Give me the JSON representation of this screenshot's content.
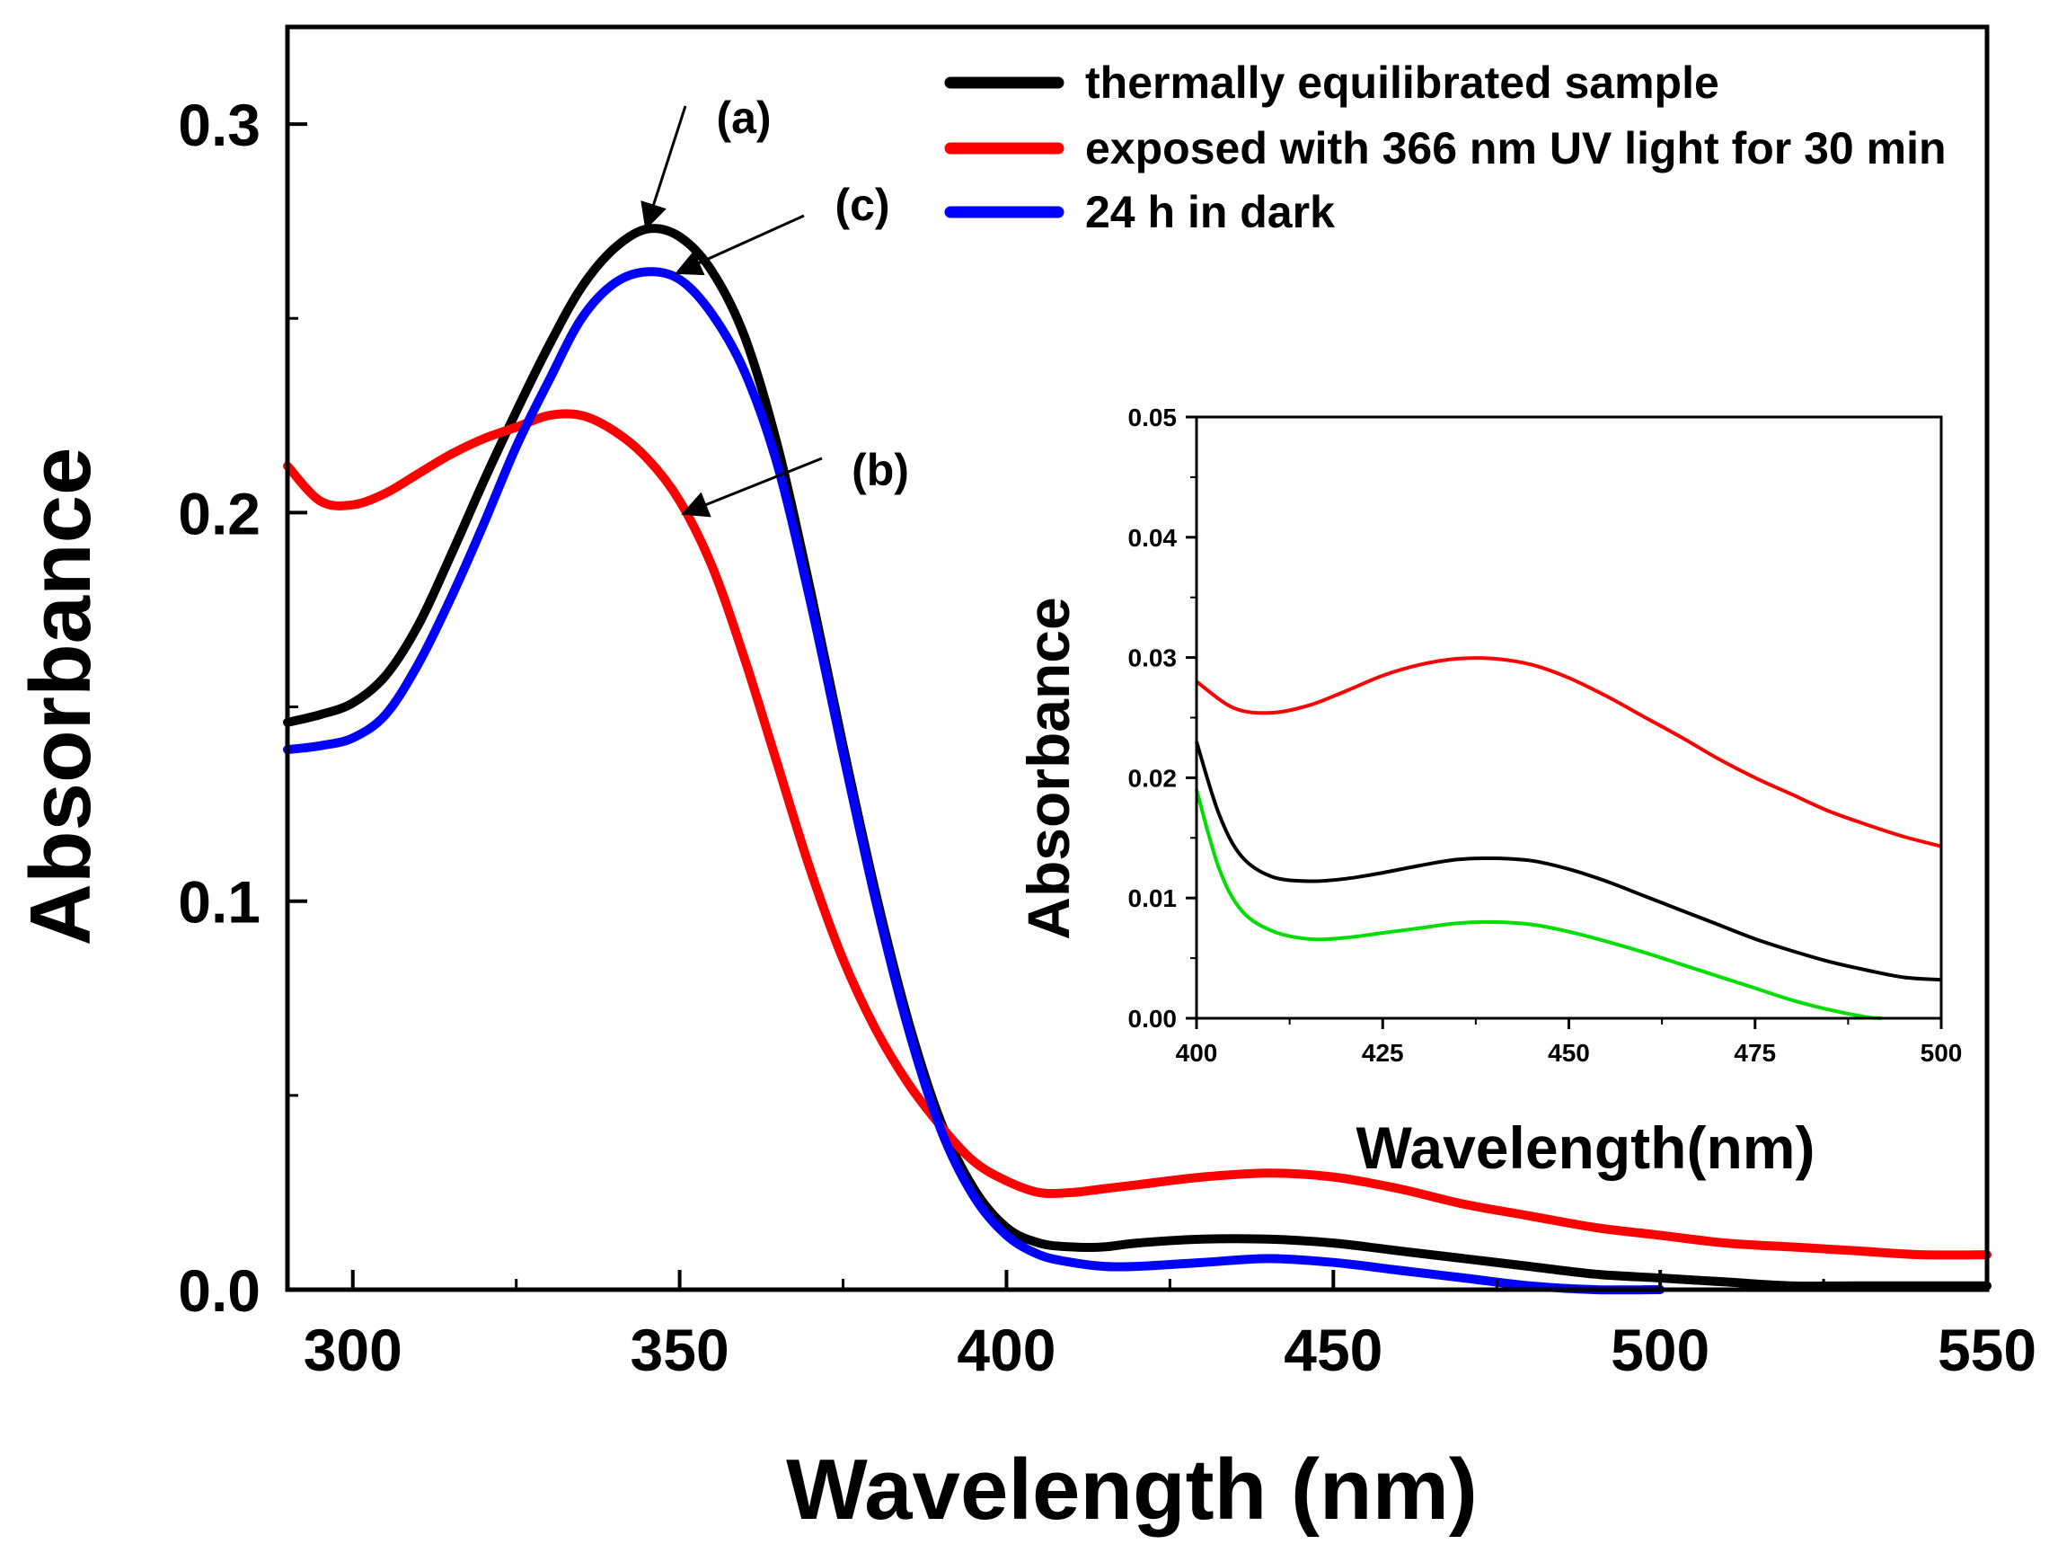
{
  "chart_data": [
    {
      "id": "main",
      "type": "line",
      "xlabel": "Wavelength (nm)",
      "ylabel": "Absorbance",
      "xlim": [
        290,
        550
      ],
      "ylim": [
        0,
        0.325
      ],
      "xticks": [
        300,
        350,
        400,
        450,
        500,
        550
      ],
      "xtick_labels": [
        "300",
        "350",
        "400",
        "450",
        "500",
        "550"
      ],
      "yticks": [
        0.0,
        0.1,
        0.2,
        0.3
      ],
      "ytick_labels": [
        "0.0",
        "0.1",
        "0.2",
        "0.3"
      ],
      "legend_position": "top-right",
      "series": [
        {
          "name": "thermally equilibrated sample",
          "color": "#000000",
          "x": [
            290,
            295,
            300,
            305,
            310,
            315,
            320,
            325,
            330,
            335,
            340,
            345,
            350,
            355,
            360,
            365,
            370,
            375,
            380,
            385,
            390,
            395,
            400,
            405,
            410,
            415,
            420,
            430,
            440,
            450,
            460,
            470,
            480,
            490,
            500,
            510,
            520,
            530,
            540,
            550
          ],
          "y": [
            0.146,
            0.148,
            0.151,
            0.158,
            0.171,
            0.189,
            0.208,
            0.226,
            0.243,
            0.258,
            0.268,
            0.273,
            0.271,
            0.262,
            0.245,
            0.217,
            0.18,
            0.14,
            0.102,
            0.069,
            0.043,
            0.026,
            0.016,
            0.012,
            0.011,
            0.011,
            0.012,
            0.013,
            0.013,
            0.012,
            0.01,
            0.008,
            0.006,
            0.004,
            0.003,
            0.002,
            0.001,
            0.001,
            0.001,
            0.001
          ]
        },
        {
          "name": "exposed with 366 nm UV light for 30 min",
          "color": "#ff0000",
          "x": [
            290,
            295,
            300,
            305,
            310,
            315,
            320,
            325,
            330,
            335,
            340,
            345,
            350,
            355,
            360,
            365,
            370,
            375,
            380,
            385,
            390,
            395,
            400,
            405,
            410,
            415,
            420,
            430,
            440,
            450,
            460,
            470,
            480,
            490,
            500,
            510,
            520,
            530,
            540,
            550
          ],
          "y": [
            0.212,
            0.203,
            0.202,
            0.205,
            0.21,
            0.215,
            0.219,
            0.222,
            0.225,
            0.225,
            0.221,
            0.214,
            0.203,
            0.186,
            0.162,
            0.135,
            0.108,
            0.085,
            0.067,
            0.053,
            0.042,
            0.033,
            0.028,
            0.025,
            0.025,
            0.026,
            0.027,
            0.029,
            0.03,
            0.029,
            0.026,
            0.022,
            0.019,
            0.016,
            0.014,
            0.012,
            0.011,
            0.01,
            0.009,
            0.009
          ]
        },
        {
          "name": "24 h in dark",
          "color": "#0000ff",
          "x": [
            290,
            295,
            300,
            305,
            310,
            315,
            320,
            325,
            330,
            335,
            340,
            345,
            350,
            355,
            360,
            365,
            370,
            375,
            380,
            385,
            390,
            395,
            400,
            405,
            410,
            415,
            420,
            430,
            440,
            450,
            460,
            470,
            480,
            490,
            500
          ],
          "y": [
            0.139,
            0.14,
            0.142,
            0.148,
            0.161,
            0.178,
            0.197,
            0.217,
            0.234,
            0.25,
            0.259,
            0.262,
            0.26,
            0.251,
            0.236,
            0.212,
            0.177,
            0.138,
            0.1,
            0.067,
            0.041,
            0.024,
            0.014,
            0.009,
            0.007,
            0.006,
            0.006,
            0.007,
            0.008,
            0.007,
            0.005,
            0.003,
            0.001,
            0.0,
            0.0
          ]
        }
      ],
      "annotations": [
        {
          "label": "(a)",
          "target_x": 345,
          "target_y": 0.274
        },
        {
          "label": "(c)",
          "target_x": 350,
          "target_y": 0.262
        },
        {
          "label": "(b)",
          "target_x": 351,
          "target_y": 0.2
        }
      ]
    },
    {
      "id": "inset",
      "type": "line",
      "xlabel": "Wavelength(nm)",
      "ylabel": "Absorbance",
      "xlim": [
        400,
        500
      ],
      "ylim": [
        0,
        0.05
      ],
      "xticks": [
        400,
        425,
        450,
        475,
        500
      ],
      "xtick_labels": [
        "400",
        "425",
        "450",
        "475",
        "500"
      ],
      "yticks": [
        0.0,
        0.01,
        0.02,
        0.03,
        0.04,
        0.05
      ],
      "ytick_labels": [
        "0.00",
        "0.01",
        "0.02",
        "0.03",
        "0.04",
        "0.05"
      ],
      "series": [
        {
          "color": "#ff0000",
          "x": [
            400,
            405,
            410,
            415,
            420,
            425,
            430,
            435,
            440,
            445,
            450,
            455,
            460,
            465,
            470,
            475,
            480,
            485,
            490,
            495,
            500
          ],
          "y": [
            0.028,
            0.0258,
            0.0254,
            0.026,
            0.0272,
            0.0285,
            0.0294,
            0.0299,
            0.0299,
            0.0294,
            0.0283,
            0.0268,
            0.0251,
            0.0234,
            0.0216,
            0.02,
            0.0186,
            0.0172,
            0.0161,
            0.0151,
            0.0143
          ]
        },
        {
          "color": "#000000",
          "x": [
            400,
            403,
            406,
            410,
            415,
            420,
            425,
            430,
            435,
            440,
            445,
            450,
            455,
            460,
            465,
            470,
            475,
            480,
            485,
            490,
            495,
            500
          ],
          "y": [
            0.023,
            0.017,
            0.0135,
            0.0118,
            0.0114,
            0.0116,
            0.0121,
            0.0127,
            0.0132,
            0.0133,
            0.0131,
            0.0124,
            0.0114,
            0.0102,
            0.009,
            0.0078,
            0.0066,
            0.0056,
            0.0047,
            0.004,
            0.0034,
            0.0032
          ]
        },
        {
          "color": "#00dd00",
          "x": [
            400,
            403,
            406,
            410,
            415,
            420,
            425,
            430,
            435,
            440,
            445,
            450,
            455,
            460,
            465,
            470,
            475,
            480,
            485,
            490,
            492
          ],
          "y": [
            0.019,
            0.0125,
            0.009,
            0.0073,
            0.0066,
            0.0067,
            0.0071,
            0.0075,
            0.0079,
            0.008,
            0.0078,
            0.0072,
            0.0064,
            0.0055,
            0.0045,
            0.0035,
            0.0025,
            0.0015,
            0.0007,
            0.0001,
            0.0
          ]
        }
      ]
    }
  ]
}
